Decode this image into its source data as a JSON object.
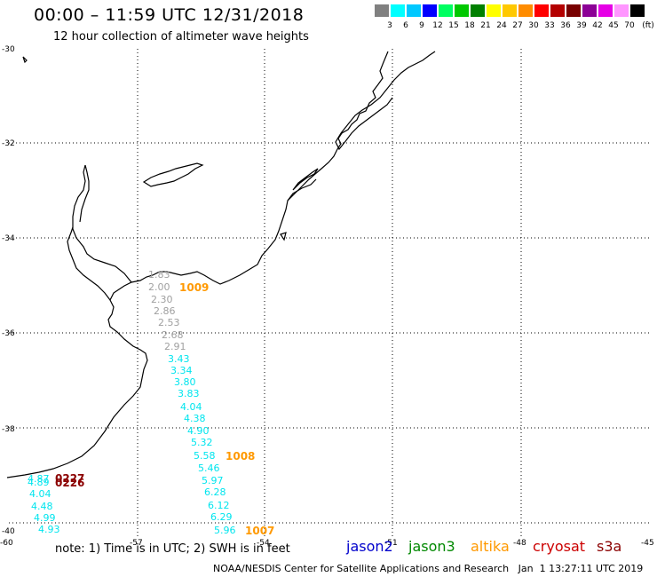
{
  "header": {
    "title": "00:00 – 11:59 UTC 12/31/2018",
    "subtitle": "12 hour collection of altimeter wave heights"
  },
  "color_scale": {
    "unit": "(ft)",
    "colors": [
      "#808080",
      "#00ffff",
      "#00c8ff",
      "#0000ff",
      "#00ff60",
      "#00c800",
      "#008000",
      "#ffff00",
      "#ffc800",
      "#ff8c00",
      "#ff0000",
      "#b40000",
      "#780000",
      "#8c0096",
      "#e600e6",
      "#ff96ff",
      "#000000"
    ],
    "labels": [
      "3",
      "6",
      "9",
      "12",
      "15",
      "18",
      "21",
      "24",
      "27",
      "30",
      "33",
      "36",
      "39",
      "42",
      "45",
      "70"
    ]
  },
  "axes": {
    "lat_labels": [
      "-30",
      "-32",
      "-34",
      "-36",
      "-38",
      "-40"
    ],
    "lon_labels": [
      "-60",
      "-57",
      "-54",
      "-51",
      "-48",
      "-45"
    ]
  },
  "observations": [
    {
      "t": "1.83",
      "c": "#a0a0a0"
    },
    {
      "t": "2.00",
      "c": "#a0a0a0"
    },
    {
      "t": "2.30",
      "c": "#a0a0a0"
    },
    {
      "t": "2.86",
      "c": "#a0a0a0"
    },
    {
      "t": "2.53",
      "c": "#a0a0a0"
    },
    {
      "t": "2.68",
      "c": "#a0a0a0"
    },
    {
      "t": "2.91",
      "c": "#a0a0a0"
    },
    {
      "t": "3.43",
      "c": "#00e5ee"
    },
    {
      "t": "3.34",
      "c": "#00e5ee"
    },
    {
      "t": "3.80",
      "c": "#00e5ee"
    },
    {
      "t": "3.83",
      "c": "#00e5ee"
    },
    {
      "t": "4.04",
      "c": "#00e5ee"
    },
    {
      "t": "4.38",
      "c": "#00e5ee"
    },
    {
      "t": "4.90",
      "c": "#00e5ee"
    },
    {
      "t": "5.32",
      "c": "#00e5ee"
    },
    {
      "t": "5.58",
      "c": "#00e5ee"
    },
    {
      "t": "5.46",
      "c": "#00e5ee"
    },
    {
      "t": "5.97",
      "c": "#00e5ee"
    },
    {
      "t": "6.28",
      "c": "#00e5ee"
    },
    {
      "t": "6.12",
      "c": "#00e5ee"
    },
    {
      "t": "6.29",
      "c": "#00e5ee"
    },
    {
      "t": "5.96",
      "c": "#00e5ee"
    },
    {
      "t": "4.87",
      "c": "#00e5ee"
    },
    {
      "t": "4.89",
      "c": "#00e5ee"
    },
    {
      "t": "4.04",
      "c": "#00e5ee"
    },
    {
      "t": "4.48",
      "c": "#00e5ee"
    },
    {
      "t": "4.99",
      "c": "#00e5ee"
    },
    {
      "t": "4.93",
      "c": "#00e5ee"
    },
    {
      "t": "1009",
      "c": "#ff9900"
    },
    {
      "t": "1008",
      "c": "#ff9900"
    },
    {
      "t": "1007",
      "c": "#ff9900"
    },
    {
      "t": "0227",
      "c": "#8b0000"
    },
    {
      "t": "0226",
      "c": "#8b0000"
    }
  ],
  "footer": {
    "note": "note: 1) Time is in UTC; 2) SWH is in feet",
    "satellites": [
      {
        "name": "jason2",
        "color": "#0000cc"
      },
      {
        "name": "jason3",
        "color": "#008800"
      },
      {
        "name": "altika",
        "color": "#ff9900"
      },
      {
        "name": "cryosat",
        "color": "#cc0000"
      },
      {
        "name": "s3a",
        "color": "#8b0000"
      }
    ],
    "credit": "NOAA/NESDIS Center for Satellite Applications and Research   Jan  1 13:27:11 UTC 2019"
  }
}
